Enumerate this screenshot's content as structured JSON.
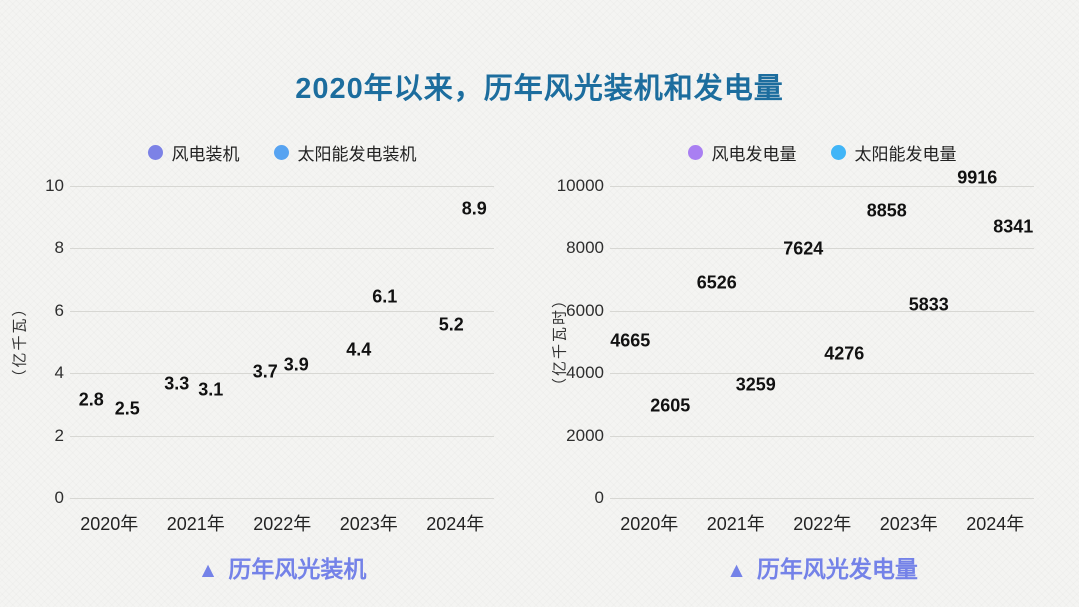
{
  "page": {
    "title": "2020年以来，历年风光装机和发电量",
    "title_color": "#1c6d9e",
    "background_color": "#f4f4f2"
  },
  "colors": {
    "grid": "#d7d7d3",
    "tick_label": "#2e2e2e",
    "data_label": "#111111",
    "caption": "#7482e8"
  },
  "chart_data": [
    {
      "type": "scatter",
      "name": "历年风光装机",
      "categories": [
        "2020年",
        "2021年",
        "2022年",
        "2023年",
        "2024年"
      ],
      "series": [
        {
          "name": "风电装机",
          "color": "#7c82e6",
          "values": [
            2.8,
            3.3,
            3.7,
            4.4,
            5.2
          ]
        },
        {
          "name": "太阳能发电装机",
          "color": "#57a3f1",
          "values": [
            2.5,
            3.1,
            3.9,
            6.1,
            8.9
          ]
        }
      ],
      "xlabel": "",
      "ylabel": "（亿千瓦）",
      "ylim": [
        0,
        10
      ],
      "yticks": [
        0,
        2,
        4,
        6,
        8,
        10
      ],
      "grid": true,
      "legend_position": "top-center",
      "markers_visible": false,
      "data_labels_visible": true,
      "caption": {
        "marker": "▲",
        "text": "历年风光装机",
        "color": "#7482e8"
      }
    },
    {
      "type": "scatter",
      "name": "历年风光发电量",
      "categories": [
        "2020年",
        "2021年",
        "2022年",
        "2023年",
        "2024年"
      ],
      "series": [
        {
          "name": "风电发电量",
          "color": "#a97ff2",
          "values": [
            4665,
            6526,
            7624,
            8858,
            9916
          ]
        },
        {
          "name": "太阳能发电量",
          "color": "#41b5f7",
          "values": [
            2605,
            3259,
            4276,
            5833,
            8341
          ]
        }
      ],
      "xlabel": "",
      "ylabel": "（亿千瓦时）",
      "ylim": [
        0,
        10000
      ],
      "yticks": [
        0,
        2000,
        4000,
        6000,
        8000,
        10000
      ],
      "grid": true,
      "legend_position": "top-center",
      "markers_visible": false,
      "data_labels_visible": true,
      "caption": {
        "marker": "▲",
        "text": "历年风光发电量",
        "color": "#7482e8"
      }
    }
  ]
}
